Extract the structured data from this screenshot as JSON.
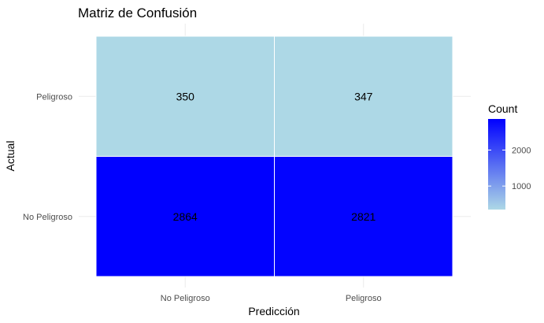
{
  "chart_data": {
    "type": "heatmap",
    "title": "Matriz de Confusión",
    "xlabel": "Predicción",
    "ylabel": "Actual",
    "x_categories": [
      "No Peligroso",
      "Peligroso"
    ],
    "y_categories": [
      "No Peligroso",
      "Peligroso"
    ],
    "cells": [
      {
        "actual": "Peligroso",
        "predicted": "No Peligroso",
        "count": 350
      },
      {
        "actual": "Peligroso",
        "predicted": "Peligroso",
        "count": 347
      },
      {
        "actual": "No Peligroso",
        "predicted": "No Peligroso",
        "count": 2864
      },
      {
        "actual": "No Peligroso",
        "predicted": "Peligroso",
        "count": 2821
      }
    ],
    "legend": {
      "title": "Count",
      "ticks": [
        1000,
        2000
      ],
      "low_color": "#add8e6",
      "high_color": "#0000ff",
      "position": "right"
    },
    "grid": true
  }
}
